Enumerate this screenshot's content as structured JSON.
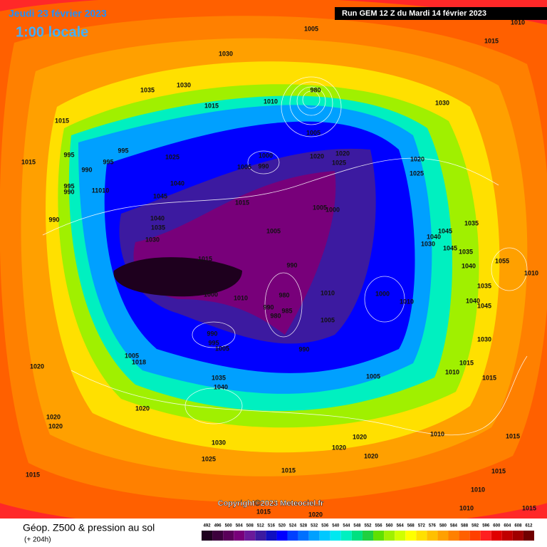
{
  "header": {
    "date": "Jeudi 23 février 2023",
    "time": "1:00 locale",
    "run": "Run GEM 12 Z du Mardi 14 février 2023"
  },
  "footer": {
    "title": "Géop. Z500 & pression au sol",
    "subtitle": "(+ 204h)",
    "copyright": "Copyright©2023 Meteociel.fr"
  },
  "scale": {
    "values": [
      492,
      496,
      500,
      504,
      508,
      512,
      516,
      520,
      524,
      528,
      532,
      536,
      540,
      544,
      548,
      552,
      556,
      560,
      564,
      568,
      572,
      576,
      580,
      584,
      588,
      592,
      596,
      600,
      604,
      608,
      612
    ],
    "colors": [
      "#1e001e",
      "#3c003c",
      "#5a005a",
      "#78007a",
      "#6a1a9a",
      "#3c1aa0",
      "#1010c0",
      "#0000ff",
      "#0040ff",
      "#0070ff",
      "#00a0ff",
      "#00c8ff",
      "#00e8f0",
      "#00f0c0",
      "#00e080",
      "#20d040",
      "#60e000",
      "#a0f000",
      "#d0ff00",
      "#ffff00",
      "#ffe000",
      "#ffc000",
      "#ffa000",
      "#ff8000",
      "#ff6000",
      "#ff4000",
      "#ff2020",
      "#e00000",
      "#c00000",
      "#a00000",
      "#700000"
    ]
  },
  "isobar_labels": [
    "1005",
    "1030",
    "1030",
    "1035",
    "1015",
    "1010",
    "980",
    "1005",
    "1030",
    "1015",
    "1010",
    "1015",
    "1015",
    "995",
    "995",
    "995",
    "990",
    "995",
    "990",
    "11010",
    "1025",
    "1040",
    "1045",
    "1000",
    "1020",
    "1020",
    "1025",
    "1005",
    "990",
    "1015",
    "1005",
    "1000",
    "1020",
    "1025",
    "1040",
    "1035",
    "1030",
    "990",
    "1005",
    "1015",
    "990",
    "1000",
    "1010",
    "980",
    "990",
    "985",
    "980",
    "1010",
    "1005",
    "1000",
    "1010",
    "1045",
    "1040",
    "1035",
    "1030",
    "1045",
    "1035",
    "1040",
    "1055",
    "1010",
    "1035",
    "1040",
    "1045",
    "1030",
    "990",
    "995",
    "1005",
    "990",
    "1018",
    "1005",
    "1020",
    "1035",
    "1040",
    "1005",
    "1015",
    "1010",
    "1015",
    "1020",
    "1020",
    "1020",
    "1010",
    "1030",
    "1020",
    "1020",
    "1020",
    "1025",
    "1015",
    "1015",
    "1015",
    "1015",
    "1010",
    "1010",
    "1015",
    "1020",
    "1015"
  ]
}
